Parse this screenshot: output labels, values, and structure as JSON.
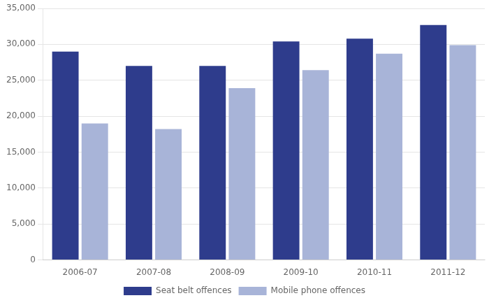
{
  "chart_data": {
    "type": "bar",
    "categories": [
      "2006-07",
      "2007-08",
      "2008-09",
      "2009-10",
      "2010-11",
      "2011-12"
    ],
    "series": [
      {
        "name": "Seat belt offences",
        "color": "#2E3C8C",
        "values": [
          29000,
          27000,
          27000,
          30400,
          30800,
          32700
        ]
      },
      {
        "name": "Mobile phone offences",
        "color": "#A8B4D8",
        "values": [
          19000,
          18200,
          23900,
          26400,
          28700,
          29900
        ]
      }
    ],
    "ylim": [
      0,
      35000
    ],
    "yticks": [
      0,
      {
        "value": 5000,
        "label": "5,000"
      },
      {
        "value": 10000,
        "label": "10,000"
      },
      {
        "value": 15000,
        "label": "15,000"
      },
      {
        "value": 20000,
        "label": "20,000"
      },
      {
        "value": 25000,
        "label": "25,000"
      },
      {
        "value": 30000,
        "label": "30,000"
      },
      {
        "value": 35000,
        "label": "35,000"
      }
    ],
    "grid": true,
    "legend": "bottom"
  }
}
